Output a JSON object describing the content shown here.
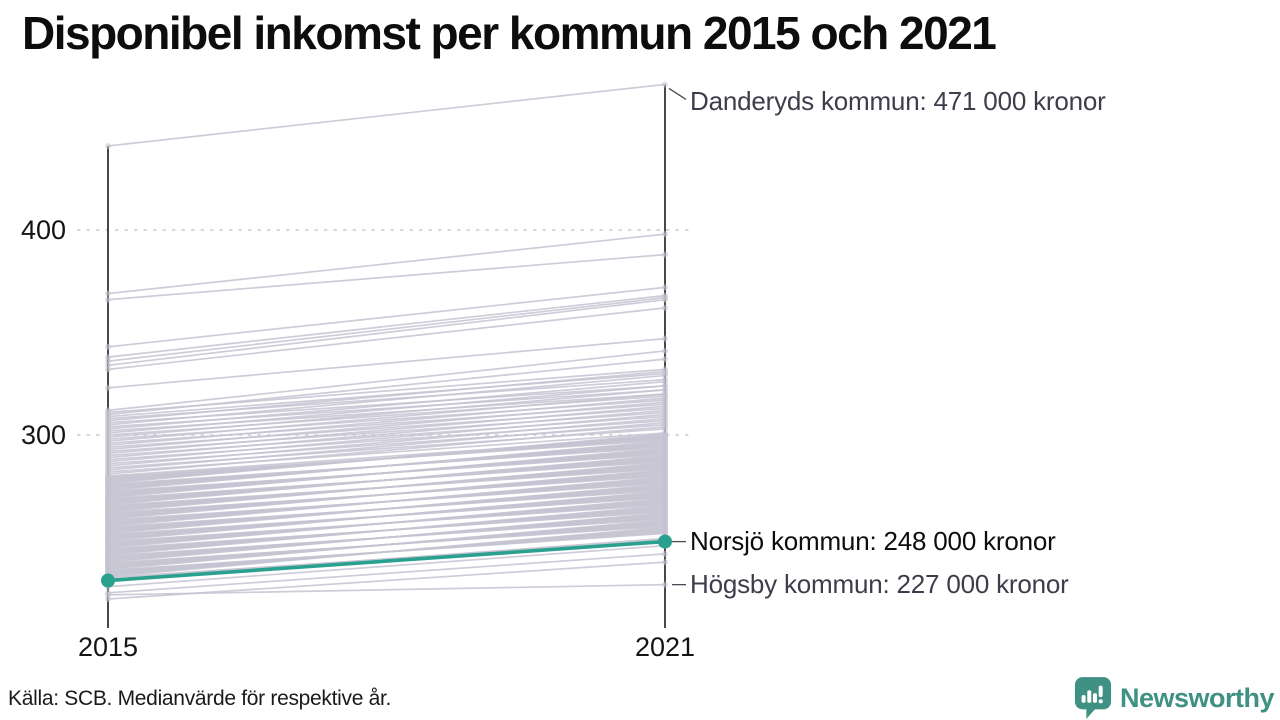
{
  "page": {
    "source_note": "Källa: SCB. Medianvärde för respektive år.",
    "brand": {
      "name": "Newsworthy",
      "color": "#3f9184"
    }
  },
  "chart_data": {
    "type": "line",
    "variant": "slope-chart",
    "title": "Disponibel inkomst per kommun 2015 och 2021",
    "value_unit": "thousand kronor",
    "x": [
      "2015",
      "2021"
    ],
    "y_ticks": [
      {
        "label": "400",
        "value": 400
      },
      {
        "label": "300",
        "value": 300
      }
    ],
    "ylim": [
      215,
      478
    ],
    "grid": "dotted-horizontal",
    "legend": "none",
    "axis_color": "#1a1a1a",
    "gridline_color": "#d7d7dd",
    "background_line_color": "#c5c4d2",
    "highlighted_series": {
      "name": "Norsjö kommun",
      "values": [
        229,
        248
      ],
      "color": "#2aa08f"
    },
    "annotations": [
      {
        "text": "Danderyds kommun: 471 000 kronor",
        "value": 471,
        "color": "#3d3d4b",
        "leader": "diagonal"
      },
      {
        "text": "Norsjö kommun: 248 000 kronor",
        "value": 248,
        "color": "#0d0d0d",
        "leader": "horizontal"
      },
      {
        "text": "Högsby kommun: 227 000 kronor",
        "value": 227,
        "color": "#3d3d4b",
        "leader": "horizontal"
      }
    ],
    "background_series": [
      [
        441,
        471
      ],
      [
        369,
        398
      ],
      [
        366,
        388
      ],
      [
        343,
        372
      ],
      [
        338,
        368
      ],
      [
        336,
        367
      ],
      [
        334,
        366
      ],
      [
        332,
        362
      ],
      [
        323,
        347
      ],
      [
        312,
        341
      ],
      [
        311,
        332
      ],
      [
        310,
        337
      ],
      [
        309,
        330
      ],
      [
        308,
        327
      ],
      [
        307,
        331
      ],
      [
        306,
        324
      ],
      [
        305,
        329
      ],
      [
        304,
        322
      ],
      [
        303,
        326
      ],
      [
        302,
        320
      ],
      [
        301,
        324
      ],
      [
        300,
        319
      ],
      [
        299,
        322
      ],
      [
        298,
        317
      ],
      [
        297,
        320
      ],
      [
        296,
        315
      ],
      [
        295,
        318
      ],
      [
        294,
        313
      ],
      [
        293,
        316
      ],
      [
        292,
        311
      ],
      [
        291,
        314
      ],
      [
        290,
        309
      ],
      [
        289,
        312
      ],
      [
        288,
        307
      ],
      [
        287,
        310
      ],
      [
        286,
        305
      ],
      [
        285,
        308
      ],
      [
        284,
        303
      ],
      [
        283,
        306
      ],
      [
        282,
        301
      ],
      [
        281,
        304
      ],
      [
        280,
        299
      ],
      [
        279.5,
        297.5
      ],
      [
        279,
        298
      ],
      [
        278.5,
        298.5
      ],
      [
        278,
        299
      ],
      [
        277.5,
        299.5
      ],
      [
        277,
        300
      ],
      [
        276.5,
        300.5
      ],
      [
        276,
        294
      ],
      [
        275.5,
        294.5
      ],
      [
        275,
        295
      ],
      [
        274.5,
        295.5
      ],
      [
        274,
        296
      ],
      [
        273.5,
        296.5
      ],
      [
        273,
        297
      ],
      [
        272.5,
        290.5
      ],
      [
        272,
        291
      ],
      [
        271.5,
        291.5
      ],
      [
        271,
        292
      ],
      [
        270.5,
        292.5
      ],
      [
        270,
        293
      ],
      [
        269.5,
        293.5
      ],
      [
        269,
        287
      ],
      [
        268.5,
        287.5
      ],
      [
        268,
        288
      ],
      [
        267.5,
        288.5
      ],
      [
        267,
        289
      ],
      [
        266.5,
        289.5
      ],
      [
        266,
        290
      ],
      [
        265.5,
        283.5
      ],
      [
        265,
        284
      ],
      [
        264.5,
        284.5
      ],
      [
        264,
        285
      ],
      [
        263.5,
        285.5
      ],
      [
        263,
        286
      ],
      [
        262.5,
        286.5
      ],
      [
        262,
        280
      ],
      [
        261.5,
        280.5
      ],
      [
        261,
        281
      ],
      [
        260.5,
        281.5
      ],
      [
        260,
        282
      ],
      [
        259.5,
        282.5
      ],
      [
        259,
        283
      ],
      [
        258.5,
        276.5
      ],
      [
        258,
        277
      ],
      [
        257.5,
        277.5
      ],
      [
        257,
        278
      ],
      [
        256.5,
        278.5
      ],
      [
        256,
        279
      ],
      [
        255.5,
        279.5
      ],
      [
        255,
        273
      ],
      [
        254.5,
        273.5
      ],
      [
        254,
        274
      ],
      [
        253.5,
        274.5
      ],
      [
        253,
        275
      ],
      [
        252.5,
        275.5
      ],
      [
        252,
        276
      ],
      [
        251.5,
        269.5
      ],
      [
        251,
        270
      ],
      [
        250.5,
        270.5
      ],
      [
        250,
        271
      ],
      [
        249.5,
        271.5
      ],
      [
        249,
        272
      ],
      [
        248.5,
        272.5
      ],
      [
        248,
        266
      ],
      [
        247.5,
        266.5
      ],
      [
        247,
        267
      ],
      [
        246.5,
        267.5
      ],
      [
        246,
        268
      ],
      [
        245.5,
        268.5
      ],
      [
        245,
        269
      ],
      [
        244.5,
        262.5
      ],
      [
        244,
        263
      ],
      [
        243.5,
        263.5
      ],
      [
        243,
        264
      ],
      [
        242.5,
        264.5
      ],
      [
        242,
        265
      ],
      [
        241.5,
        265.5
      ],
      [
        241,
        259
      ],
      [
        240.5,
        259.5
      ],
      [
        240,
        260
      ],
      [
        239.5,
        260.5
      ],
      [
        239,
        261
      ],
      [
        238.5,
        261.5
      ],
      [
        238,
        262
      ],
      [
        237.5,
        255.5
      ],
      [
        237,
        256
      ],
      [
        236.5,
        256.5
      ],
      [
        236,
        257
      ],
      [
        235.5,
        257.5
      ],
      [
        235,
        258
      ],
      [
        234.5,
        258.5
      ],
      [
        234,
        252
      ],
      [
        233.5,
        252.5
      ],
      [
        233,
        253
      ],
      [
        232.5,
        253.5
      ],
      [
        232,
        254
      ],
      [
        231.5,
        254.5
      ],
      [
        231,
        255
      ],
      [
        230.5,
        248.5
      ],
      [
        230,
        249
      ],
      [
        229.5,
        249.5
      ],
      [
        226,
        246
      ],
      [
        223,
        242
      ],
      [
        220,
        238
      ],
      [
        222,
        227
      ]
    ]
  }
}
